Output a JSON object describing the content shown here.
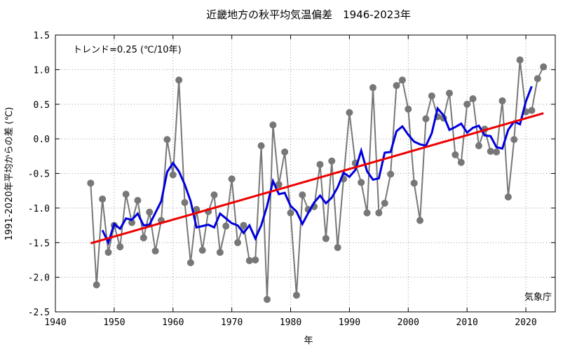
{
  "chart_data": {
    "type": "line",
    "title": "近畿地方の秋平均気温偏差　1946-2023年",
    "xlabel": "年",
    "ylabel": "1991-2020年平均からの差 (℃)",
    "xlim": [
      1940,
      2025
    ],
    "ylim": [
      -2.5,
      1.5
    ],
    "x_ticks": [
      1940,
      1950,
      1960,
      1970,
      1980,
      1990,
      2000,
      2010,
      2020
    ],
    "y_ticks": [
      -2.5,
      -2.0,
      -1.5,
      -1.0,
      -0.5,
      0.0,
      0.5,
      1.0,
      1.5
    ],
    "x_tick_labels": [
      "1940",
      "1950",
      "1960",
      "1970",
      "1980",
      "1990",
      "2000",
      "2010",
      "2020"
    ],
    "y_tick_labels": [
      "-2.5",
      "-2.0",
      "-1.5",
      "-1.0",
      "-0.5",
      "0.0",
      "0.5",
      "1.0",
      "1.5"
    ],
    "grid": true,
    "trend_text": "トレンド=0.25 (℃/10年)",
    "source": "気象庁",
    "colors": {
      "annual": "#777777",
      "moving_average": "#0000dd",
      "trend": "#ee0000"
    },
    "series": [
      {
        "kind": "annual",
        "x": [
          1946,
          1947,
          1948,
          1949,
          1950,
          1951,
          1952,
          1953,
          1954,
          1955,
          1956,
          1957,
          1958,
          1959,
          1960,
          1961,
          1962,
          1963,
          1964,
          1965,
          1966,
          1967,
          1968,
          1969,
          1970,
          1971,
          1972,
          1973,
          1974,
          1975,
          1976,
          1977,
          1978,
          1979,
          1980,
          1981,
          1982,
          1983,
          1984,
          1985,
          1986,
          1987,
          1988,
          1989,
          1990,
          1991,
          1992,
          1993,
          1994,
          1995,
          1996,
          1997,
          1998,
          1999,
          2000,
          2001,
          2002,
          2003,
          2004,
          2005,
          2006,
          2007,
          2008,
          2009,
          2010,
          2011,
          2012,
          2013,
          2014,
          2015,
          2016,
          2017,
          2018,
          2019,
          2020,
          2021,
          2022,
          2023
        ],
        "values": [
          -0.64,
          -2.11,
          -0.87,
          -1.64,
          -1.25,
          -1.56,
          -0.8,
          -1.21,
          -0.89,
          -1.43,
          -1.06,
          -1.62,
          -1.18,
          -0.01,
          -0.52,
          0.85,
          -0.92,
          -1.79,
          -1.02,
          -1.61,
          -1.05,
          -0.81,
          -1.64,
          -1.26,
          -0.58,
          -1.5,
          -1.25,
          -1.76,
          -1.75,
          -0.1,
          -2.32,
          0.2,
          -0.66,
          -0.19,
          -1.07,
          -2.26,
          -0.81,
          -1.02,
          -0.98,
          -0.37,
          -1.44,
          -0.32,
          -1.57,
          -0.58,
          0.38,
          -0.35,
          -0.63,
          -1.07,
          0.74,
          -1.07,
          -0.93,
          -0.51,
          0.77,
          0.85,
          0.43,
          -0.64,
          -1.18,
          0.29,
          0.62,
          0.32,
          0.3,
          0.66,
          -0.23,
          -0.34,
          0.5,
          0.58,
          -0.1,
          0.14,
          -0.18,
          -0.19,
          0.55,
          -0.84,
          -0.01,
          1.14,
          0.39,
          0.41,
          0.87,
          1.04
        ]
      },
      {
        "kind": "moving_average",
        "x": [
          1948,
          1949,
          1950,
          1951,
          1952,
          1953,
          1954,
          1955,
          1956,
          1957,
          1958,
          1959,
          1960,
          1961,
          1962,
          1963,
          1964,
          1965,
          1966,
          1967,
          1968,
          1969,
          1970,
          1971,
          1972,
          1973,
          1974,
          1975,
          1976,
          1977,
          1978,
          1979,
          1980,
          1981,
          1982,
          1983,
          1984,
          1985,
          1986,
          1987,
          1988,
          1989,
          1990,
          1991,
          1992,
          1993,
          1994,
          1995,
          1996,
          1997,
          1998,
          1999,
          2000,
          2001,
          2002,
          2003,
          2004,
          2005,
          2006,
          2007,
          2008,
          2009,
          2010,
          2011,
          2012,
          2013,
          2014,
          2015,
          2016,
          2017,
          2018,
          2019,
          2020,
          2021
        ],
        "values": [
          -1.32,
          -1.5,
          -1.23,
          -1.3,
          -1.15,
          -1.17,
          -1.08,
          -1.25,
          -1.24,
          -1.07,
          -0.9,
          -0.48,
          -0.35,
          -0.47,
          -0.66,
          -0.9,
          -1.28,
          -1.26,
          -1.24,
          -1.28,
          -1.08,
          -1.15,
          -1.22,
          -1.25,
          -1.36,
          -1.25,
          -1.44,
          -1.25,
          -0.97,
          -0.61,
          -0.8,
          -0.78,
          -0.97,
          -1.05,
          -1.23,
          -1.07,
          -0.92,
          -0.82,
          -0.93,
          -0.85,
          -0.7,
          -0.49,
          -0.55,
          -0.45,
          -0.17,
          -0.47,
          -0.59,
          -0.57,
          -0.2,
          -0.19,
          0.11,
          0.18,
          0.06,
          -0.04,
          -0.08,
          -0.1,
          0.08,
          0.44,
          0.34,
          0.13,
          0.17,
          0.22,
          0.09,
          0.16,
          0.19,
          0.05,
          0.04,
          -0.12,
          -0.14,
          0.13,
          0.25,
          0.21,
          0.54,
          0.76
        ]
      },
      {
        "kind": "trend",
        "x": [
          1946,
          2023
        ],
        "values": [
          -1.51,
          0.37
        ]
      }
    ]
  }
}
